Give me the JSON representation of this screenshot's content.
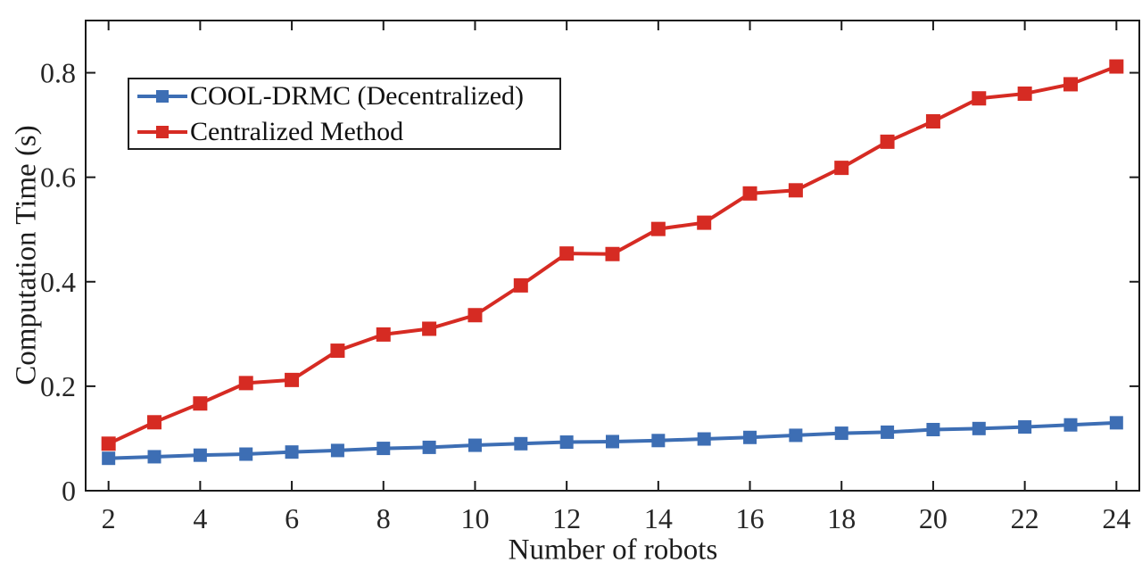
{
  "chart_data": {
    "type": "line",
    "title": "",
    "xlabel": "Number of robots",
    "ylabel": "Computation Time (s)",
    "x": [
      2,
      3,
      4,
      5,
      6,
      7,
      8,
      9,
      10,
      11,
      12,
      13,
      14,
      15,
      16,
      17,
      18,
      19,
      20,
      21,
      22,
      23,
      24
    ],
    "xticks": [
      2,
      4,
      6,
      8,
      10,
      12,
      14,
      16,
      18,
      20,
      22,
      24
    ],
    "yticks": [
      0,
      0.2,
      0.4,
      0.6,
      0.8
    ],
    "ytick_labels": [
      "0",
      "0.2",
      "0.4",
      "0.6",
      "0.8"
    ],
    "xlim": [
      1.5,
      24.5
    ],
    "ylim": [
      0,
      0.9
    ],
    "grid": false,
    "legend_position": "upper-left",
    "axis_color": "#1a1a1a",
    "tick_label_color": "#262626",
    "series": [
      {
        "name": "COOL-DRMC (Decentralized)",
        "color": "#3d6eb4",
        "marker": "square",
        "values": [
          0.062,
          0.065,
          0.068,
          0.07,
          0.074,
          0.077,
          0.081,
          0.083,
          0.087,
          0.09,
          0.093,
          0.094,
          0.096,
          0.099,
          0.102,
          0.106,
          0.11,
          0.112,
          0.117,
          0.119,
          0.122,
          0.126,
          0.13
        ]
      },
      {
        "name": "Centralized Method",
        "color": "#d62b23",
        "marker": "square",
        "values": [
          0.09,
          0.131,
          0.167,
          0.206,
          0.212,
          0.268,
          0.299,
          0.31,
          0.336,
          0.393,
          0.454,
          0.453,
          0.501,
          0.513,
          0.569,
          0.575,
          0.618,
          0.668,
          0.707,
          0.751,
          0.76,
          0.778,
          0.812
        ]
      }
    ]
  }
}
